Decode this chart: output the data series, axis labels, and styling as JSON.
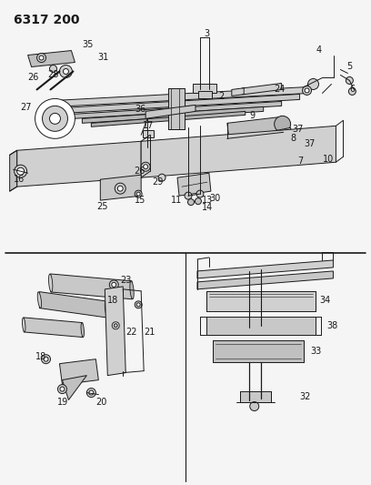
{
  "title": "6317 200",
  "bg_color": "#f5f5f5",
  "line_color": "#1a1a1a",
  "title_fontsize": 10,
  "label_fontsize": 7,
  "fig_width": 4.08,
  "fig_height": 5.33,
  "dpi": 100
}
